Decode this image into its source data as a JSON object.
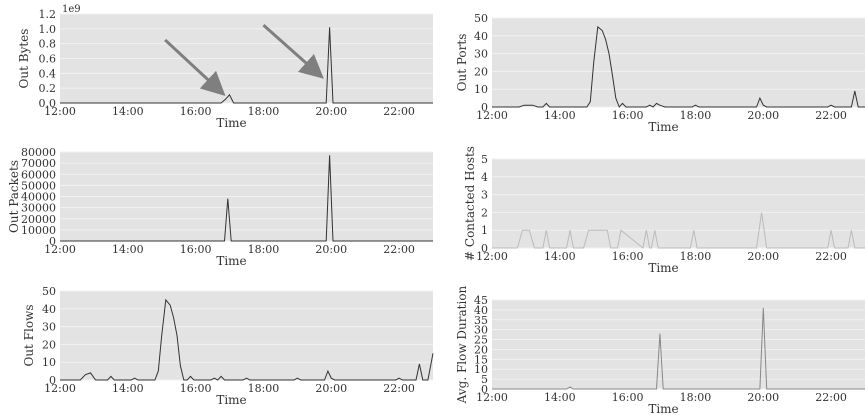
{
  "chart_data": [
    {
      "type": "line",
      "ylabel": "Out Bytes",
      "xlabel": "Time",
      "multiplier": "1e9",
      "xticks": [
        "12:00",
        "14:00",
        "16:00",
        "18:00",
        "20:00",
        "22:00"
      ],
      "yticks": [
        "0.0",
        "0.2",
        "0.4",
        "0.6",
        "0.8",
        "1.0",
        "1.2"
      ],
      "ylim": [
        0,
        1.2
      ],
      "xlim": [
        12.0,
        23.0
      ],
      "grid": true,
      "series": [
        {
          "color": "#333333",
          "x": [
            12.0,
            16.75,
            16.88,
            17.0,
            17.12,
            19.75,
            19.85,
            19.95,
            20.05,
            23.0
          ],
          "y": [
            0,
            0,
            0.05,
            0.11,
            0,
            0,
            0,
            1.02,
            0,
            0
          ]
        }
      ],
      "annotations": [
        {
          "type": "arrow",
          "from": [
            15.1,
            0.85
          ],
          "to": [
            16.75,
            0.15
          ]
        },
        {
          "type": "arrow",
          "from": [
            18.0,
            1.05
          ],
          "to": [
            19.65,
            0.38
          ]
        }
      ]
    },
    {
      "type": "line",
      "ylabel": "Out Ports",
      "xlabel": "Time",
      "xticks": [
        "12:00",
        "14:00",
        "16:00",
        "18:00",
        "20:00",
        "22:00"
      ],
      "yticks": [
        "0",
        "10",
        "20",
        "30",
        "40",
        "50"
      ],
      "ylim": [
        0,
        50
      ],
      "xlim": [
        12.0,
        23.0
      ],
      "grid": true,
      "series": [
        {
          "color": "#333333",
          "x": [
            12.0,
            12.8,
            12.95,
            13.2,
            13.35,
            13.5,
            13.6,
            13.7,
            13.8,
            14.8,
            14.9,
            15.0,
            15.12,
            15.25,
            15.35,
            15.45,
            15.55,
            15.65,
            15.75,
            15.85,
            15.95,
            16.55,
            16.65,
            16.75,
            16.85,
            16.95,
            17.1,
            17.9,
            18.0,
            18.1,
            19.8,
            19.9,
            20.0,
            20.1,
            21.9,
            22.0,
            22.1,
            22.6,
            22.7,
            22.8,
            23.0
          ],
          "y": [
            0,
            0,
            1,
            1,
            0,
            0,
            2,
            0,
            0,
            0,
            3,
            25,
            45,
            43,
            38,
            30,
            18,
            5,
            0,
            2,
            0,
            0,
            1,
            0,
            2,
            1,
            0,
            0,
            1,
            0,
            0,
            5,
            1,
            0,
            0,
            1,
            0,
            0,
            9,
            0,
            0
          ]
        }
      ]
    },
    {
      "type": "line",
      "ylabel": "Out Packets",
      "xlabel": "Time",
      "xticks": [
        "12:00",
        "14:00",
        "16:00",
        "18:00",
        "20:00",
        "22:00"
      ],
      "yticks": [
        "0",
        "10000",
        "20000",
        "30000",
        "40000",
        "50000",
        "60000",
        "70000",
        "80000"
      ],
      "ylim": [
        0,
        80000
      ],
      "xlim": [
        12.0,
        23.0
      ],
      "grid": true,
      "series": [
        {
          "color": "#333333",
          "x": [
            12.0,
            16.75,
            16.85,
            16.95,
            17.05,
            19.75,
            19.85,
            19.95,
            20.05,
            23.0
          ],
          "y": [
            0,
            0,
            0,
            38000,
            0,
            0,
            0,
            77000,
            0,
            0
          ]
        }
      ]
    },
    {
      "type": "line",
      "ylabel": "# Contacted Hosts",
      "xlabel": "Time",
      "xticks": [
        "12:00",
        "14:00",
        "16:00",
        "18:00",
        "20:00",
        "22:00"
      ],
      "yticks": [
        "0",
        "1",
        "2",
        "3",
        "4",
        "5"
      ],
      "ylim": [
        0,
        5
      ],
      "xlim": [
        12.0,
        23.0
      ],
      "grid": true,
      "series": [
        {
          "color": "#bbbbbb",
          "x": [
            12.0,
            12.75,
            12.9,
            13.1,
            13.25,
            13.5,
            13.6,
            13.7,
            14.2,
            14.3,
            14.4,
            14.7,
            14.85,
            15.25,
            15.4,
            15.5,
            15.7,
            15.8,
            16.45,
            16.55,
            16.65,
            16.7,
            16.8,
            16.9,
            17.85,
            17.95,
            18.05,
            19.8,
            19.95,
            20.1,
            21.9,
            22.0,
            22.1,
            22.5,
            22.6,
            22.7,
            23.0
          ],
          "y": [
            0,
            0,
            1,
            1,
            0,
            0,
            1,
            0,
            0,
            1,
            0,
            0,
            1,
            1,
            1,
            0,
            0,
            1,
            0,
            1,
            0,
            0,
            1,
            0,
            0,
            1,
            0,
            0,
            2,
            0,
            0,
            1,
            0,
            0,
            1,
            0,
            0
          ]
        }
      ]
    },
    {
      "type": "line",
      "ylabel": "Out Flows",
      "xlabel": "Time",
      "xticks": [
        "12:00",
        "14:00",
        "16:00",
        "18:00",
        "20:00",
        "22:00"
      ],
      "yticks": [
        "0",
        "10",
        "20",
        "30",
        "40",
        "50"
      ],
      "ylim": [
        0,
        50
      ],
      "xlim": [
        12.0,
        23.0
      ],
      "grid": true,
      "series": [
        {
          "color": "#333333",
          "x": [
            12.0,
            12.6,
            12.75,
            12.9,
            13.05,
            13.4,
            13.5,
            13.6,
            14.1,
            14.2,
            14.3,
            14.8,
            14.9,
            15.0,
            15.12,
            15.25,
            15.35,
            15.45,
            15.55,
            15.65,
            15.75,
            15.85,
            15.95,
            16.45,
            16.55,
            16.65,
            16.75,
            16.85,
            17.4,
            17.5,
            17.6,
            18.9,
            19.0,
            19.1,
            19.8,
            19.9,
            20.0,
            20.1,
            21.9,
            22.0,
            22.1,
            22.5,
            22.6,
            22.7,
            22.85,
            23.0
          ],
          "y": [
            0,
            0,
            3,
            4,
            0,
            0,
            2,
            0,
            0,
            1,
            0,
            0,
            5,
            25,
            45,
            42,
            35,
            25,
            8,
            0,
            0,
            2,
            0,
            0,
            1,
            0,
            2,
            0,
            0,
            1,
            0,
            0,
            1,
            0,
            0,
            5,
            1,
            0,
            0,
            1,
            0,
            0,
            9,
            0,
            0,
            15
          ]
        }
      ]
    },
    {
      "type": "line",
      "ylabel": "Avg. Flow Duration",
      "xlabel": "Time",
      "xticks": [
        "12:00",
        "14:00",
        "16:00",
        "18:00",
        "20:00",
        "22:00"
      ],
      "yticks": [
        "0",
        "5",
        "10",
        "15",
        "20",
        "25",
        "30",
        "35",
        "40",
        "45"
      ],
      "ylim": [
        0,
        45
      ],
      "xlim": [
        12.0,
        23.0
      ],
      "grid": true,
      "series": [
        {
          "color": "#888888",
          "x": [
            12.0,
            14.2,
            14.3,
            14.4,
            16.85,
            16.95,
            17.05,
            19.9,
            20.0,
            20.1,
            23.0
          ],
          "y": [
            0,
            0,
            1,
            0,
            0,
            28,
            0,
            0,
            41,
            0,
            0
          ]
        }
      ]
    }
  ]
}
